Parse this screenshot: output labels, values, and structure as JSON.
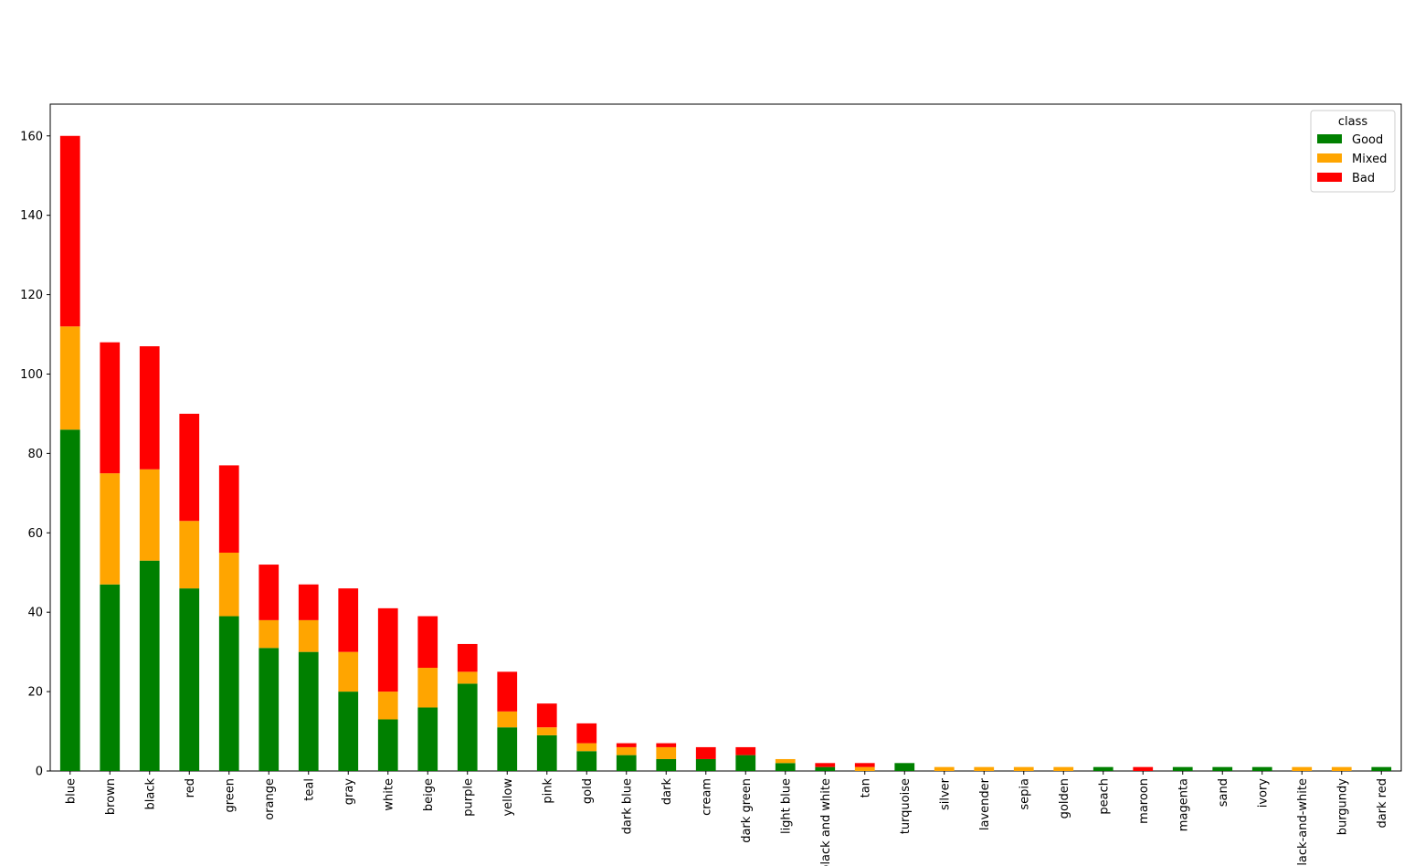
{
  "chart_data": {
    "type": "stacked_bar",
    "categories": [
      "blue",
      "brown",
      "black",
      "red",
      "green",
      "orange",
      "teal",
      "gray",
      "white",
      "beige",
      "purple",
      "yellow",
      "pink",
      "gold",
      "dark blue",
      "dark",
      "cream",
      "dark green",
      "light blue",
      "black and white",
      "tan",
      "turquoise",
      "silver",
      "lavender",
      "sepia",
      "golden",
      "peach",
      "maroon",
      "magenta",
      "sand",
      "ivory",
      "black-and-white",
      "burgundy",
      "dark red"
    ],
    "series": [
      {
        "name": "Good",
        "color": "#008000",
        "values": [
          86,
          47,
          53,
          46,
          39,
          31,
          30,
          20,
          13,
          16,
          22,
          11,
          9,
          5,
          4,
          3,
          3,
          4,
          2,
          1,
          0,
          2,
          0,
          0,
          0,
          0,
          1,
          0,
          1,
          1,
          1,
          0,
          0,
          1
        ]
      },
      {
        "name": "Mixed",
        "color": "#ffa500",
        "values": [
          26,
          28,
          23,
          17,
          16,
          7,
          8,
          10,
          7,
          10,
          3,
          4,
          2,
          2,
          2,
          3,
          0,
          0,
          1,
          0,
          1,
          0,
          1,
          1,
          1,
          1,
          0,
          0,
          0,
          0,
          0,
          1,
          1,
          0
        ]
      },
      {
        "name": "Bad",
        "color": "#ff0000",
        "values": [
          48,
          33,
          31,
          27,
          22,
          14,
          9,
          16,
          21,
          13,
          7,
          10,
          6,
          5,
          1,
          1,
          3,
          2,
          0,
          1,
          1,
          0,
          0,
          0,
          0,
          0,
          0,
          1,
          0,
          0,
          0,
          0,
          0,
          0
        ]
      }
    ],
    "legend_title": "class",
    "legend_position": "upper right",
    "ylim": [
      0,
      168
    ],
    "yticks": [
      0,
      20,
      40,
      60,
      80,
      100,
      120,
      140,
      160
    ]
  }
}
